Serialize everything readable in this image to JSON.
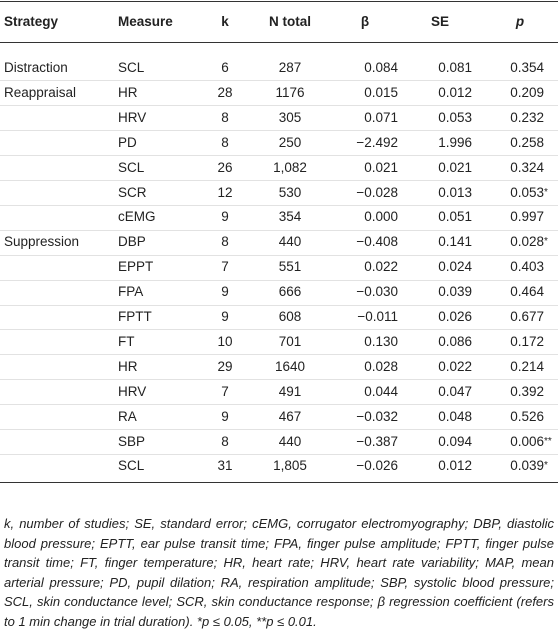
{
  "table": {
    "header": [
      "Strategy",
      "Measure",
      "k",
      "N total",
      "β",
      "SE",
      "p"
    ],
    "rows": [
      {
        "strategy": "Distraction",
        "cells": [
          "SCL",
          "6",
          "287",
          "0.084",
          "0.081",
          "0.354"
        ]
      },
      {
        "strategy": "Reappraisal",
        "cells": [
          "HR",
          "28",
          "1176",
          "0.015",
          "0.012",
          "0.209"
        ]
      },
      {
        "cells": [
          "HRV",
          "8",
          "305",
          "0.071",
          "0.053",
          "0.232"
        ]
      },
      {
        "cells": [
          "PD",
          "8",
          "250",
          "−2.492",
          "1.996",
          "0.258"
        ]
      },
      {
        "cells": [
          "SCL",
          "26",
          "1,082",
          "0.021",
          "0.021",
          "0.324"
        ]
      },
      {
        "cells": [
          "SCR",
          "12",
          "530",
          "−0.028",
          "0.013",
          "0.053*"
        ]
      },
      {
        "cells": [
          "cEMG",
          "9",
          "354",
          "0.000",
          "0.051",
          "0.997"
        ]
      },
      {
        "strategy": "Suppression",
        "cells": [
          "DBP",
          "8",
          "440",
          "−0.408",
          "0.141",
          "0.028*"
        ]
      },
      {
        "cells": [
          "EPPT",
          "7",
          "551",
          "0.022",
          "0.024",
          "0.403"
        ]
      },
      {
        "cells": [
          "FPA",
          "9",
          "666",
          "−0.030",
          "0.039",
          "0.464"
        ]
      },
      {
        "cells": [
          "FPTT",
          "9",
          "608",
          "−0.011",
          "0.026",
          "0.677"
        ]
      },
      {
        "cells": [
          "FT",
          "10",
          "701",
          "0.130",
          "0.086",
          "0.172"
        ]
      },
      {
        "cells": [
          "HR",
          "29",
          "1640",
          "0.028",
          "0.022",
          "0.214"
        ]
      },
      {
        "cells": [
          "HRV",
          "7",
          "491",
          "0.044",
          "0.047",
          "0.392"
        ]
      },
      {
        "cells": [
          "RA",
          "9",
          "467",
          "−0.032",
          "0.048",
          "0.526"
        ]
      },
      {
        "cells": [
          "SBP",
          "8",
          "440",
          "−0.387",
          "0.094",
          "0.006**"
        ]
      },
      {
        "cells": [
          "SCL",
          "31",
          "1,805",
          "−0.026",
          "0.012",
          "0.039*"
        ]
      }
    ],
    "note": "k, number of studies; SE, standard error; cEMG, corrugator electromyography; DBP, diastolic blood pressure; EPTT, ear pulse transit time; FPA, finger pulse amplitude; FPTT, finger pulse transit time; FT, finger temperature; HR, heart rate; HRV, heart rate variability; MAP, mean arterial pressure; PD, pupil dilation; RA, respiration amplitude; SBP, systolic blood pressure; SCL, skin conductance level; SCR, skin conductance response; β regression coefficient (refers to 1 min change in trial duration). *p ≤ 0.05, **p ≤ 0.01."
  }
}
